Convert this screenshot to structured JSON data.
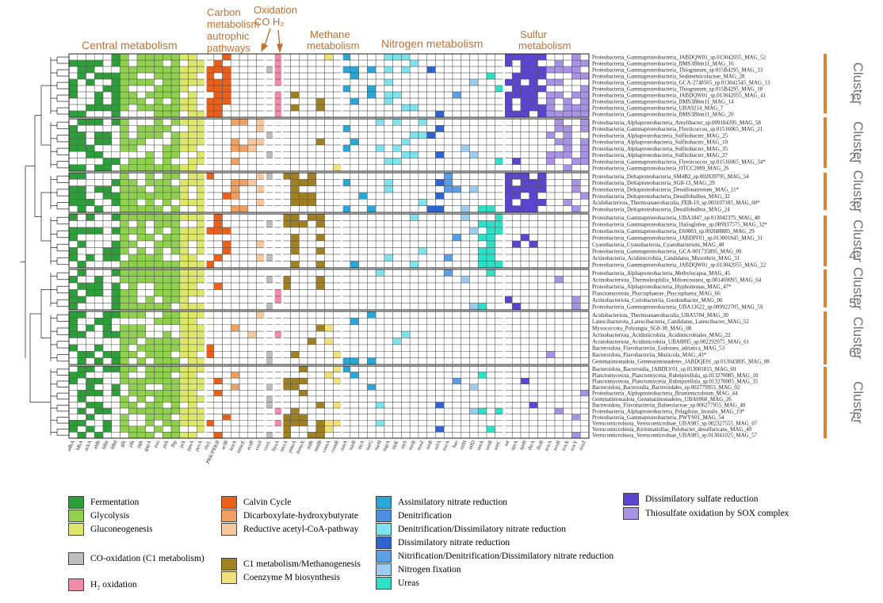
{
  "headers": {
    "central": "Central metabolism",
    "carbon": [
      "Carbon",
      "metabolism",
      "autrophic",
      "pathways"
    ],
    "oxidation": "Oxidation",
    "co": "CO",
    "h2": "H₂",
    "methane": [
      "Methane",
      "metabolism"
    ],
    "nitrogen": "Nitrogen metabolism",
    "sulfur": [
      "Sulfur",
      "metabolism"
    ]
  },
  "clusters": [
    {
      "word": "Cluster",
      "num": "1"
    },
    {
      "word": "Cluster",
      "num": "2"
    },
    {
      "word": "Cluster",
      "num": "3"
    },
    {
      "word": "Cluster",
      "num": "4"
    },
    {
      "word": "Cluster",
      "num": "5"
    },
    {
      "word": "Cluster",
      "num": "6"
    },
    {
      "word": "Cluster",
      "num": "7"
    }
  ],
  "colors": {
    "Fermentation": "#2e9e3b",
    "Glycolysis": "#8fd14f",
    "Gluconeogenesis": "#dde86a",
    "Calvin": "#e8601c",
    "Dicarb": "#f0a060",
    "RAcCoA": "#f5c8a0",
    "CO": "#bdbdbd",
    "H2": "#f08ca8",
    "C1": "#a08020",
    "CoM": "#f2e07a",
    "AssimN": "#2aa7d6",
    "Denit": "#4a8fe0",
    "DenitDiss": "#7de3ee",
    "DissN": "#2f63cf",
    "NitDenit": "#5b9ee8",
    "NFix": "#9bcdf0",
    "Urea": "#2de0c8",
    "DSR": "#5b45d0",
    "SOX": "#a892e6",
    "cluster_bar": "#e08030",
    "arrow": "#c07030"
  },
  "genes": [
    "adhA",
    "ldhA",
    "ackA",
    "aldh",
    "ldhb",
    "ldhd",
    "glk",
    "pfk",
    "pgk",
    "gapA",
    "eno",
    "pyk",
    "fbp",
    "pck",
    "ppsA",
    "pycA",
    "rbcL",
    "PRK/PRKB",
    "aclB",
    "korA",
    "mmcE",
    "acsB",
    "cooS",
    "coxL",
    "hyaA",
    "mcrA",
    "pmoA",
    "mmoX",
    "mdh",
    "mtdB",
    "comA",
    "comB",
    "nasA",
    "narB",
    "nirA",
    "narG",
    "narH",
    "napA",
    "nirK",
    "nirS",
    "norB",
    "nosZ",
    "nirB",
    "nrfA",
    "nxrA",
    "hao",
    "nifH",
    "nifD",
    "ureA",
    "ureB",
    "ureC",
    "sat",
    "aprA",
    "aprB",
    "dsrA",
    "dsrB",
    "soxA",
    "soxB",
    "soxX",
    "soxY",
    "soxZ"
  ],
  "rows": [
    "Proteobacteria_Gammaproteobacteria_JABDQW01_sp.013042055_MAG_52",
    "Proteobacteria_Gammaproteobacteria_BMS3Bbin11_MAG_16",
    "Proteobacteria_Gammaproteobacteria_Thiogranum_sp.015B4295_MAG_33",
    "Proteobacteria_Gammaproteobacteria_Sedimenticolaceae_MAG_28",
    "Proteobacteria_Gammaproteobacteria_GCA-2748565_sp.013041545_MAG_13",
    "Proteobacteria_Gammaproteobacteria_Thiogranum_sp.015B4295_MAG_18",
    "Proteobacteria_Gammaproteobacteria_JABDQW01_sp.013042055_MAG_41",
    "Proteobacteria_Gammaproteobacteria_BMS3Bbin11_MAG_14",
    "Proteobacteria_Gammaproteobacteria_UBA9214_MAG_7",
    "Proteobacteria_Gammaproteobacteria_BMS3Bbin11_MAG_20",
    "Proteobacteria_Alphaproteobacteria_Amylibacter_sp.009184395_MAG_58",
    "Proteobacteria_Gammaproteobacteria_Fluviicoccus_sp.01516065_MAG_21",
    "Proteobacteria_Alphaproteobacteria_Sulfitobacter_MAG_25",
    "Proteobacteria_Alphaproteobacteria_Sulfitobacter_MAG_10",
    "Proteobacteria_Alphaproteobacteria_Sulfitobacter_MAG_35",
    "Proteobacteria_Alphaproteobacteria_Sulfitobacter_MAG_27",
    "Proteobacteria_Gammaproteobacteria_Fluviicoccus_sp.01516065_MAG_34*",
    "Proteobacteria_Gammaproteobacteria_HTCC2089_MAG_26",
    "Proteobacteria_Deltaproteobacteria_SM4B2_sp.002839795_MAG_54",
    "Proteobacteria_Deltaproteobacteria_SG8-13_MAG_29",
    "Proteobacteria_Deltaproteobacteria_Desulfonatronum_MAG_11*",
    "Proteobacteria_Deltaproteobacteria_Desulfobulbus_MAG_32",
    "Acidobacteriota_Thermoanaerobaculia_FEB-10_sp.003107185_MAG_60*",
    "Proteobacteria_Deltaproteobacteria_Desulfobulbus_MAG_24",
    "Proteobacteria_Gammaproteobacteria_UBA1847_sp.013042375_MAG_40",
    "Proteobacteria_Gammaproteobacteria_Halioglobus_sp.009937575_MAG_32*",
    "Proteobacteria_Gammaproteobacteria_E60003_sp.002688885_MAG_29",
    "Proteobacteria_Gammaproteobacteria_JABDPF01_sp.013001845_MAG_31",
    "Cyanobacteria_Cyanobacteriia_Cyanobacterium_MAG_48",
    "Proteobacteria_Gammaproteobacteria_GCA-001735895_MAG_09",
    "Actinobacteria_Acidimicrobiia_Candidatus_Microthrix_MAG_31",
    "Proteobacteria_Gammaproteobacteria_JABDQW01_sp.013042055_MAG_22",
    "Proteobacteria_Alphaproteobacteria_Methylocapsa_MAG_45",
    "Actinobacteriota_Thermoleophilia_Miltoncostaea_sp.001469095_MAG_64",
    "Proteobacteria_Alphaproteobacteria_Hyphomonas_MAG_47*",
    "Planctomycetota_Phycisphaerae_Phycisphaera_MAG_66",
    "Actinobacteriota_Coriobacteriia_Gordonibacter_MAG_06",
    "Proteobacteria_Gammaproteobacteria_UBA13622_sp.009922705_MAG_59",
    "Acidobacteriota_Thermoanaerobaculia_UBA5704_MAG_30",
    "Latescibacterota_Latescibacteria_Candidatus_Latescibacter_MAG_52",
    "Myxococcota_Polyangia_SG8-38_MAG_08",
    "Actinobacteriota_Acidimicrobiia_Acidimicrobiales_MAG_22",
    "Actinobacteriota_Acidimicrobiia_UBA8895_sp.002292975_MAG_61",
    "Bacteroidota_Flavobacteriia_Eudoraea_adriatica_MAG_53",
    "Bacteroidota_Flavobacteriia_Muriicola_MAG_43*",
    "Gemmatimonadota_Gemmatimonadetes_JABDQE01_sp.013043895_MAG_08",
    "Bacteroidota_Bacteroidia_JABDLV01_sp.013001815_MAG_69",
    "Planctomycetota_Planctomycetia_Rubripirellula_sp.013270085_MAG_10",
    "Planctomycetota_Planctomycetia_Rubripirellula_sp.013270085_MAG_35",
    "Bacteroidota_Bacteroidia_Bacteroidales_sp.002779955_MAG_02",
    "Proteobacteria_Alphaproteobacteria_Brumimicrobium_MAG_44",
    "Gemmatimonadota_Gemmatimonadetes_UBA6960_MAG_26",
    "Bacteroidota_Flavobacteriia_Balneolaceae_sp.006277955_MAG_40",
    "Proteobacteria_Alphaproteobacteria_Pelagibius_litoralis_MAG_19*",
    "Proteobacteria_Gammaproteobacteria_PWYS01_MAG_54",
    "Verrucomicrobiota_Verrucomicrobiae_UBA985_sp.002327555_MAG_07",
    "Verrucomicrobiota_Kiritimatiellae_Pelobacter_desulfuricans_MAG_49",
    "Verrucomicrobiota_Verrucomicrobiae_UBA985_sp.013041025_MAG_57"
  ],
  "legend": {
    "col1": [
      {
        "label": "Fermentation",
        "color": "Fermentation"
      },
      {
        "label": "Glycolysis",
        "color": "Glycolysis"
      },
      {
        "label": "Gluconeogenesis",
        "color": "Gluconeogenesis"
      },
      {
        "label": "CO-oxidation (C1 metabolism)",
        "color": "CO"
      },
      {
        "label": "H₂ oxidation",
        "color": "H2"
      }
    ],
    "col2": [
      {
        "label": "Calvin Cycle",
        "color": "Calvin"
      },
      {
        "label": "Dicarboxylate-hydroxybutyrate",
        "color": "Dicarb"
      },
      {
        "label": "Reductive acetyl-CoA-pathway",
        "color": "RAcCoA"
      },
      {
        "label": "C1 metabolism/Methanogenesis",
        "color": "C1"
      },
      {
        "label": "Coenzyme M biosynthesis",
        "color": "CoM"
      }
    ],
    "col3": [
      {
        "label": "Assimilatory nitrate reduction",
        "color": "AssimN"
      },
      {
        "label": "Denitrification",
        "color": "Denit"
      },
      {
        "label": "Denitrification/Dissimilatory nitrate reduction",
        "color": "DenitDiss"
      },
      {
        "label": "Dissimilatory nitrate reduction",
        "color": "DissN"
      },
      {
        "label": "Nitrification/Denitrification/Dissimilatory nitrate reduction",
        "color": "NitDenit"
      },
      {
        "label": "Nitrogen fixation",
        "color": "NFix"
      },
      {
        "label": "Ureas",
        "color": "Urea"
      }
    ],
    "col4": [
      {
        "label": "Dissimilatory sulfate reduction",
        "color": "DSR"
      },
      {
        "label": "Thiosulfate oxidation by SOX complex",
        "color": "SOX"
      }
    ]
  }
}
